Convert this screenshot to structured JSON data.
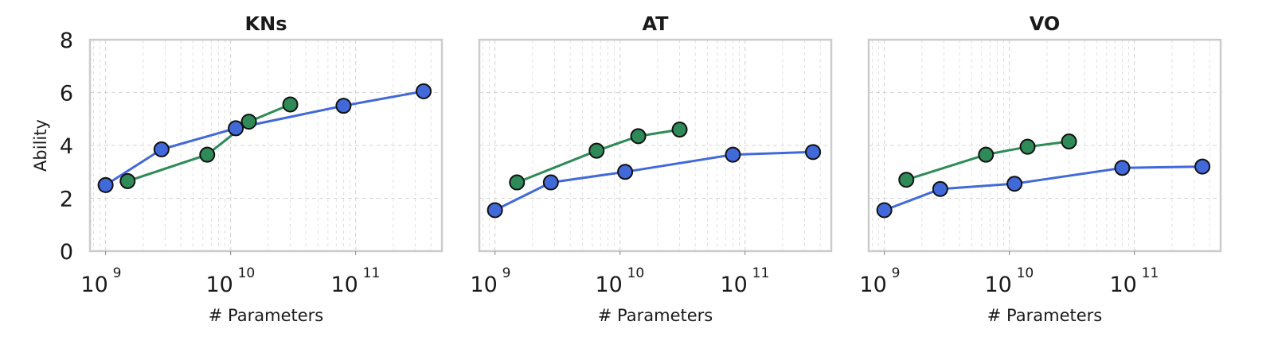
{
  "chart_data": [
    {
      "type": "line",
      "title": "KNs",
      "xlabel": "# Parameters",
      "ylabel": "Ability",
      "xscale": "log",
      "xlim": [
        750000000.0,
        490000000000.0
      ],
      "ylim": [
        0,
        8
      ],
      "yticks": [
        "0",
        "2",
        "4",
        "6",
        "8"
      ],
      "xticks": [
        {
          "base": "10",
          "exp": "9"
        },
        {
          "base": "10",
          "exp": "10"
        },
        {
          "base": "10",
          "exp": "11"
        }
      ],
      "grid": true,
      "series": [
        {
          "color": "#4169d9",
          "x": [
            1000000000.0,
            2800000000.0,
            11000000000.0,
            80000000000.0,
            350000000000.0
          ],
          "y": [
            2.5,
            3.85,
            4.65,
            5.5,
            6.05
          ]
        },
        {
          "color": "#2e8b57",
          "x": [
            1500000000.0,
            6500000000.0,
            14000000000.0,
            30000000000.0
          ],
          "y": [
            2.65,
            3.65,
            4.9,
            5.55
          ]
        }
      ]
    },
    {
      "type": "line",
      "title": "AT",
      "xlabel": "# Parameters",
      "ylabel": "",
      "xscale": "log",
      "xlim": [
        750000000.0,
        490000000000.0
      ],
      "ylim": [
        0,
        8
      ],
      "yticks": [],
      "xticks": [
        {
          "base": "10",
          "exp": "9"
        },
        {
          "base": "10",
          "exp": "10"
        },
        {
          "base": "10",
          "exp": "11"
        }
      ],
      "grid": true,
      "series": [
        {
          "color": "#4169d9",
          "x": [
            1000000000.0,
            2800000000.0,
            11000000000.0,
            80000000000.0,
            350000000000.0
          ],
          "y": [
            1.55,
            2.6,
            3.0,
            3.65,
            3.75
          ]
        },
        {
          "color": "#2e8b57",
          "x": [
            1500000000.0,
            6500000000.0,
            14000000000.0,
            30000000000.0
          ],
          "y": [
            2.6,
            3.8,
            4.35,
            4.6
          ]
        }
      ]
    },
    {
      "type": "line",
      "title": "VO",
      "xlabel": "# Parameters",
      "ylabel": "",
      "xscale": "log",
      "xlim": [
        750000000.0,
        490000000000.0
      ],
      "ylim": [
        0,
        8
      ],
      "yticks": [],
      "xticks": [
        {
          "base": "10",
          "exp": "9"
        },
        {
          "base": "10",
          "exp": "10"
        },
        {
          "base": "10",
          "exp": "11"
        }
      ],
      "grid": true,
      "series": [
        {
          "color": "#4169d9",
          "x": [
            1000000000.0,
            2800000000.0,
            11000000000.0,
            80000000000.0,
            350000000000.0
          ],
          "y": [
            1.55,
            2.35,
            2.55,
            3.15,
            3.2
          ]
        },
        {
          "color": "#2e8b57",
          "x": [
            1500000000.0,
            6500000000.0,
            14000000000.0,
            30000000000.0
          ],
          "y": [
            2.7,
            3.65,
            3.95,
            4.15
          ]
        }
      ]
    }
  ]
}
